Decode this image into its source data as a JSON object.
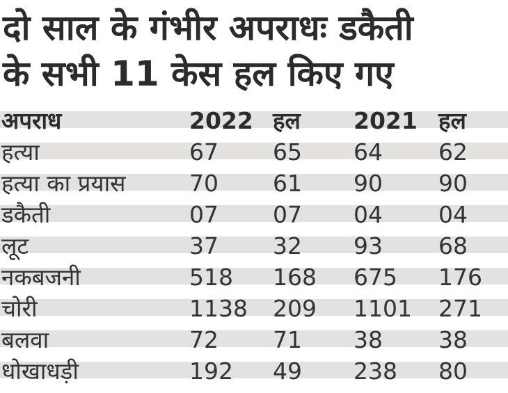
{
  "title_lines": [
    "दो साल के गंभीर अपराधः डकैती",
    "के सभी 11 केस हल किए गए"
  ],
  "colors": {
    "stripe": "#e4e2e0",
    "text": "#2b2b2b"
  },
  "chart_data": {
    "type": "table",
    "title": "दो साल के गंभीर अपराधः डकैती के सभी 11 केस हल किए गए",
    "columns": [
      "अपराध",
      "2022",
      "हल",
      "2021",
      "हल"
    ],
    "rows": [
      [
        "हत्या",
        "67",
        "65",
        "64",
        "62"
      ],
      [
        "हत्या का प्रयास",
        "70",
        "61",
        "90",
        "90"
      ],
      [
        "डकैती",
        "07",
        "07",
        "04",
        "04"
      ],
      [
        "लूट",
        "37",
        "32",
        "93",
        "68"
      ],
      [
        "नकबजनी",
        "518",
        "168",
        "675",
        "176"
      ],
      [
        "चोरी",
        "1138",
        "209",
        "1101",
        "271"
      ],
      [
        "बलवा",
        "72",
        "71",
        "38",
        "38"
      ],
      [
        "धोखाधड़ी",
        "192",
        "49",
        "238",
        "80"
      ]
    ]
  }
}
